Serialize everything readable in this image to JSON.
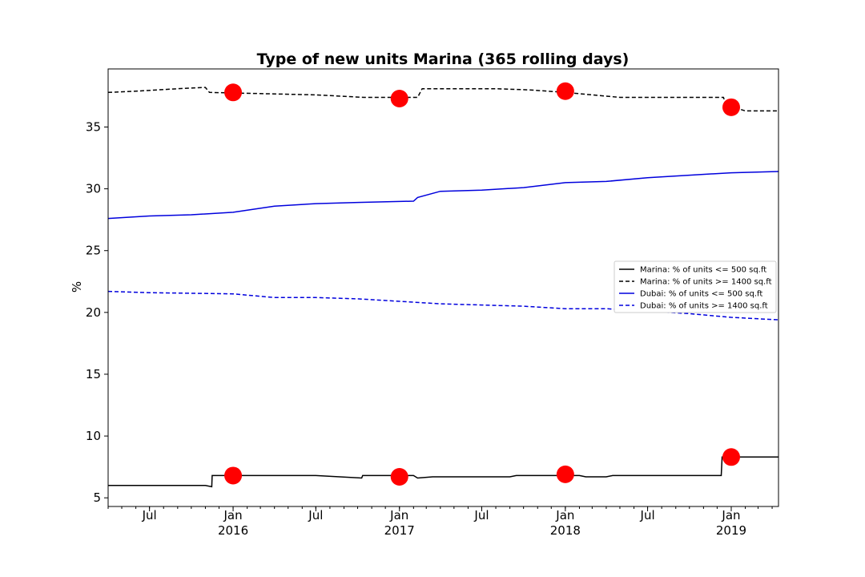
{
  "chart_data": {
    "type": "line",
    "title": "Type of new units Marina (365 rolling days)",
    "xlabel": "",
    "ylabel": "%",
    "x_range": [
      "2015-04-01",
      "2019-04-15"
    ],
    "ylim": [
      4.3,
      39.7
    ],
    "y_ticks": [
      5,
      10,
      15,
      20,
      25,
      30,
      35
    ],
    "x_ticks": [
      {
        "date": "2015-07-01",
        "label": "Jul"
      },
      {
        "date": "2016-01-01",
        "label": "Jan",
        "sublabel": "2016"
      },
      {
        "date": "2016-07-01",
        "label": "Jul"
      },
      {
        "date": "2017-01-01",
        "label": "Jan",
        "sublabel": "2017"
      },
      {
        "date": "2017-07-01",
        "label": "Jul"
      },
      {
        "date": "2018-01-01",
        "label": "Jan",
        "sublabel": "2018"
      },
      {
        "date": "2018-07-01",
        "label": "Jul"
      },
      {
        "date": "2019-01-01",
        "label": "Jan",
        "sublabel": "2019"
      }
    ],
    "grid": false,
    "legend_position": "center-right",
    "series": [
      {
        "name": "Marina: % of units <= 500 sq.ft",
        "color": "#000000",
        "style": "solid",
        "points": [
          [
            "2015-04-01",
            6.0
          ],
          [
            "2015-11-01",
            6.0
          ],
          [
            "2015-11-15",
            5.9
          ],
          [
            "2015-11-16",
            6.8
          ],
          [
            "2016-07-01",
            6.8
          ],
          [
            "2016-10-10",
            6.6
          ],
          [
            "2016-10-12",
            6.8
          ],
          [
            "2017-02-01",
            6.8
          ],
          [
            "2017-02-10",
            6.6
          ],
          [
            "2017-03-15",
            6.7
          ],
          [
            "2017-09-01",
            6.7
          ],
          [
            "2017-09-15",
            6.8
          ],
          [
            "2018-02-01",
            6.8
          ],
          [
            "2018-02-15",
            6.7
          ],
          [
            "2018-04-01",
            6.7
          ],
          [
            "2018-04-15",
            6.8
          ],
          [
            "2018-12-10",
            6.8
          ],
          [
            "2018-12-12",
            8.3
          ],
          [
            "2019-04-15",
            8.3
          ]
        ]
      },
      {
        "name": "Marina: % of units >= 1400 sq.ft",
        "color": "#000000",
        "style": "dashed",
        "points": [
          [
            "2015-04-01",
            37.8
          ],
          [
            "2015-06-01",
            37.9
          ],
          [
            "2015-09-01",
            38.1
          ],
          [
            "2015-11-01",
            38.2
          ],
          [
            "2015-11-10",
            37.8
          ],
          [
            "2016-07-01",
            37.6
          ],
          [
            "2016-10-15",
            37.4
          ],
          [
            "2017-02-10",
            37.4
          ],
          [
            "2017-02-20",
            38.1
          ],
          [
            "2017-08-01",
            38.1
          ],
          [
            "2017-10-15",
            38.0
          ],
          [
            "2018-01-01",
            37.8
          ],
          [
            "2018-03-01",
            37.6
          ],
          [
            "2018-05-01",
            37.4
          ],
          [
            "2018-12-15",
            37.4
          ],
          [
            "2018-12-20",
            36.8
          ],
          [
            "2019-02-01",
            36.3
          ],
          [
            "2019-04-15",
            36.3
          ]
        ]
      },
      {
        "name": "Dubai: % of units <= 500 sq.ft",
        "color": "#0000dd",
        "style": "solid",
        "points": [
          [
            "2015-04-01",
            27.6
          ],
          [
            "2015-07-01",
            27.8
          ],
          [
            "2015-10-01",
            27.9
          ],
          [
            "2016-01-01",
            28.1
          ],
          [
            "2016-04-01",
            28.6
          ],
          [
            "2016-07-01",
            28.8
          ],
          [
            "2016-10-01",
            28.9
          ],
          [
            "2017-02-01",
            29.0
          ],
          [
            "2017-02-10",
            29.3
          ],
          [
            "2017-04-01",
            29.8
          ],
          [
            "2017-07-01",
            29.9
          ],
          [
            "2017-10-01",
            30.1
          ],
          [
            "2018-01-01",
            30.5
          ],
          [
            "2018-04-01",
            30.6
          ],
          [
            "2018-07-01",
            30.9
          ],
          [
            "2018-10-01",
            31.1
          ],
          [
            "2019-01-01",
            31.3
          ],
          [
            "2019-04-15",
            31.4
          ]
        ]
      },
      {
        "name": "Dubai: % of units >= 1400 sq.ft",
        "color": "#0000dd",
        "style": "dashed",
        "points": [
          [
            "2015-04-01",
            21.7
          ],
          [
            "2015-07-01",
            21.6
          ],
          [
            "2016-01-01",
            21.5
          ],
          [
            "2016-04-01",
            21.2
          ],
          [
            "2016-07-01",
            21.2
          ],
          [
            "2016-10-01",
            21.1
          ],
          [
            "2017-01-01",
            20.9
          ],
          [
            "2017-04-01",
            20.7
          ],
          [
            "2017-07-01",
            20.6
          ],
          [
            "2017-10-01",
            20.5
          ],
          [
            "2018-01-01",
            20.3
          ],
          [
            "2018-04-01",
            20.3
          ],
          [
            "2018-07-01",
            20.1
          ],
          [
            "2018-10-01",
            19.9
          ],
          [
            "2019-01-01",
            19.6
          ],
          [
            "2019-04-15",
            19.4
          ]
        ]
      }
    ],
    "markers": {
      "color": "#ff0000",
      "points": [
        [
          "2016-01-01",
          37.8
        ],
        [
          "2017-01-01",
          37.3
        ],
        [
          "2018-01-01",
          37.9
        ],
        [
          "2019-01-01",
          36.6
        ],
        [
          "2016-01-01",
          6.8
        ],
        [
          "2017-01-01",
          6.7
        ],
        [
          "2018-01-01",
          6.9
        ],
        [
          "2019-01-01",
          8.3
        ]
      ]
    }
  }
}
